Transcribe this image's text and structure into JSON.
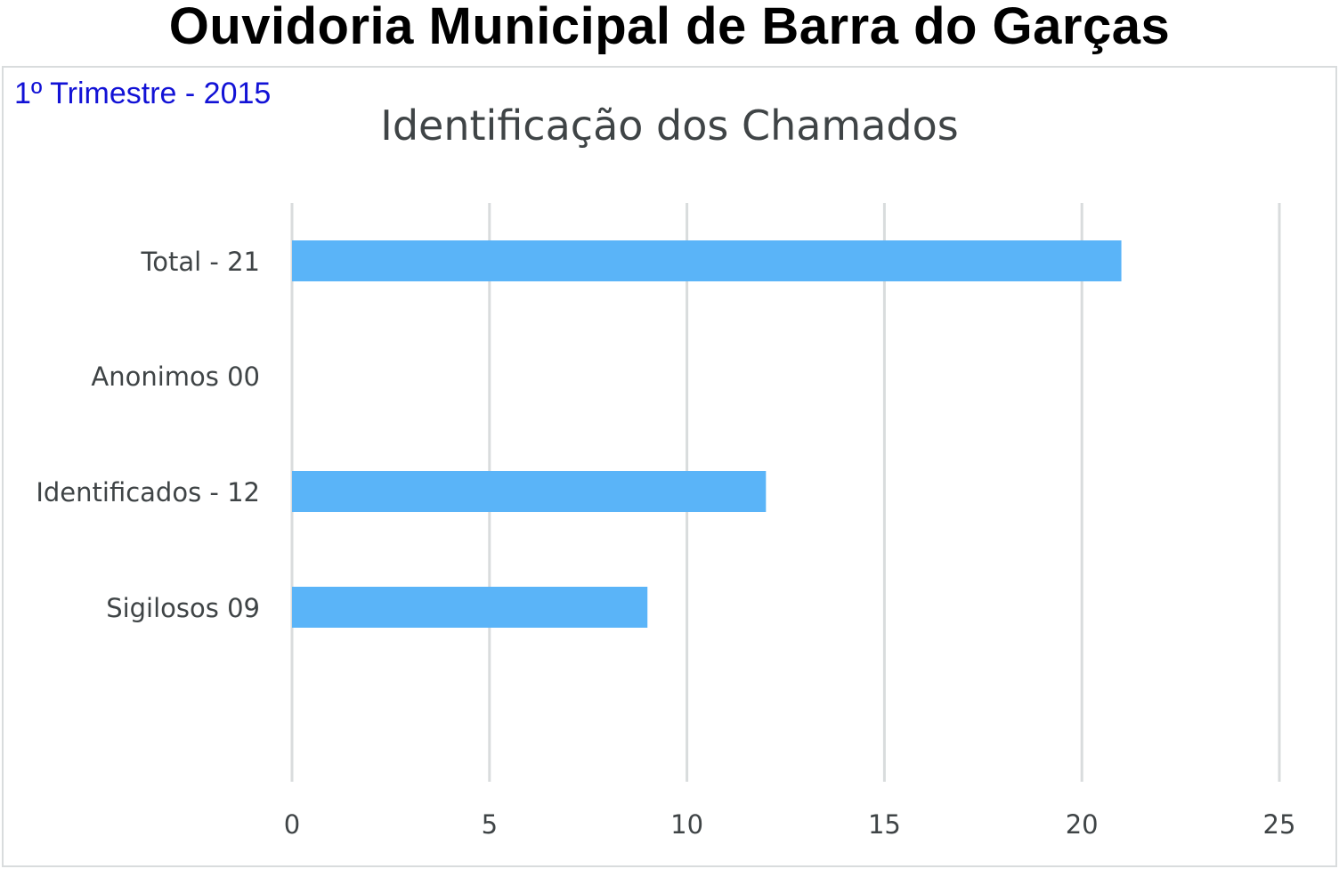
{
  "header": {
    "title": "Ouvidoria Municipal de Barra do Garças"
  },
  "period": "1º Trimestre - 2015",
  "chart_data": {
    "type": "bar",
    "orientation": "horizontal",
    "title": "Identificação dos Chamados",
    "categories": [
      "Total - 21",
      "Anonimos 00",
      "Identificados - 12",
      "Sigilosos 09"
    ],
    "values": [
      21,
      0,
      12,
      9
    ],
    "xlim": [
      0,
      25
    ],
    "xticks": [
      "0",
      "5",
      "10",
      "15",
      "20",
      "25"
    ],
    "xlabel": "",
    "ylabel": "",
    "grid": "vertical",
    "legend": "none",
    "bar_color": "#5ab4f8",
    "gridline_color": "#d9dcdd"
  }
}
